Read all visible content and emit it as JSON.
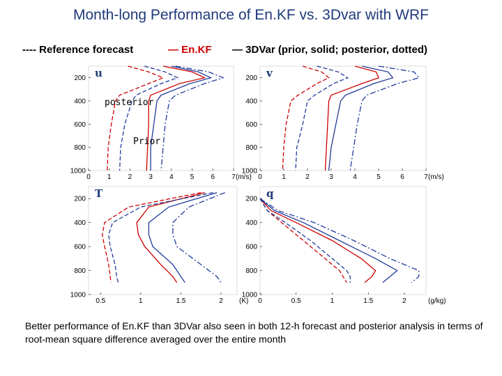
{
  "title": "Month-long Performance of En.KF vs. 3Dvar with WRF",
  "legend": {
    "reference": "---- Reference forecast",
    "enkf": "— En.KF",
    "var3d": "— 3DVar (prior, solid; posterior, dotted)",
    "colors": {
      "reference": "#000000",
      "enkf": "#cc0000",
      "var3d": "#1f3a9a"
    }
  },
  "caption": "Better performance of En.KF than 3DVar also seen in both 12-h forecast and posterior analysis in terms of root-mean square difference averaged over the entire month",
  "annotations": {
    "posterior": "posterior",
    "prior": "Prior"
  },
  "chart_data": [
    {
      "type": "line",
      "label": "u",
      "unit": "(m/s)",
      "xlim": [
        0,
        7
      ],
      "ylim": [
        1000,
        100
      ],
      "xticks": [
        "0",
        "1",
        "2",
        "3",
        "4",
        "5",
        "6",
        "7"
      ],
      "yticks": [
        "200",
        "400",
        "600",
        "800",
        "1000"
      ],
      "series": [
        {
          "name": "En.KF prior",
          "color": "#cc0000",
          "dash": "solid",
          "x": [
            3.6,
            5.0,
            5.6,
            4.4,
            3.0,
            2.9,
            2.9,
            2.85,
            2.8
          ],
          "y": [
            100,
            150,
            200,
            250,
            350,
            400,
            600,
            800,
            1000
          ]
        },
        {
          "name": "En.KF posterior",
          "color": "#cc0000",
          "dash": "dotted",
          "x": [
            1.9,
            2.9,
            3.6,
            2.9,
            1.5,
            1.3,
            1.1,
            0.95,
            0.9
          ],
          "y": [
            100,
            150,
            200,
            250,
            350,
            400,
            600,
            800,
            1000
          ]
        },
        {
          "name": "3DVar prior",
          "color": "#1f3a9a",
          "dash": "solid",
          "x": [
            4.0,
            5.3,
            5.9,
            4.9,
            3.5,
            3.3,
            3.15,
            3.0,
            3.0
          ],
          "y": [
            100,
            150,
            200,
            250,
            350,
            400,
            600,
            800,
            1000
          ]
        },
        {
          "name": "3DVar posterior",
          "color": "#1f3a9a",
          "dash": "dotted",
          "x": [
            2.7,
            3.7,
            4.3,
            3.5,
            2.3,
            2.1,
            1.75,
            1.55,
            1.5
          ],
          "y": [
            100,
            150,
            200,
            250,
            350,
            400,
            600,
            800,
            1000
          ]
        },
        {
          "name": "Reference forecast",
          "color": "#1f3a9a",
          "dash": "dashed",
          "x": [
            4.2,
            5.8,
            6.5,
            5.6,
            4.2,
            3.9,
            3.7,
            3.6,
            3.5
          ],
          "y": [
            100,
            150,
            200,
            250,
            350,
            400,
            600,
            800,
            1000
          ]
        }
      ]
    },
    {
      "type": "line",
      "label": "v",
      "unit": "(m/s)",
      "xlim": [
        0,
        7
      ],
      "ylim": [
        1000,
        100
      ],
      "xticks": [
        "0",
        "1",
        "2",
        "3",
        "4",
        "5",
        "6",
        "7"
      ],
      "yticks": [
        "200",
        "400",
        "600",
        "800",
        "1000"
      ],
      "series": [
        {
          "name": "En.KF prior",
          "color": "#cc0000",
          "dash": "solid",
          "x": [
            4.0,
            4.9,
            5.0,
            4.3,
            3.0,
            2.9,
            2.85,
            2.8,
            2.75
          ],
          "y": [
            100,
            150,
            200,
            250,
            350,
            400,
            600,
            800,
            1000
          ]
        },
        {
          "name": "En.KF posterior",
          "color": "#cc0000",
          "dash": "dotted",
          "x": [
            1.8,
            2.6,
            2.9,
            2.4,
            1.6,
            1.3,
            1.1,
            1.0,
            0.95
          ],
          "y": [
            100,
            150,
            200,
            250,
            350,
            400,
            600,
            800,
            1000
          ]
        },
        {
          "name": "3DVar prior",
          "color": "#1f3a9a",
          "dash": "solid",
          "x": [
            4.3,
            5.4,
            5.6,
            4.8,
            3.6,
            3.4,
            3.2,
            3.0,
            2.9
          ],
          "y": [
            100,
            150,
            200,
            250,
            350,
            400,
            600,
            800,
            1000
          ]
        },
        {
          "name": "3DVar posterior",
          "color": "#1f3a9a",
          "dash": "dotted",
          "x": [
            2.4,
            3.3,
            3.7,
            3.1,
            2.3,
            2.0,
            1.8,
            1.55,
            1.5
          ],
          "y": [
            100,
            150,
            200,
            250,
            350,
            400,
            600,
            800,
            1000
          ]
        },
        {
          "name": "Reference forecast",
          "color": "#1f3a9a",
          "dash": "dashed",
          "x": [
            5.0,
            6.5,
            6.7,
            5.8,
            4.5,
            4.3,
            4.1,
            3.95,
            3.8
          ],
          "y": [
            100,
            150,
            200,
            250,
            350,
            400,
            600,
            800,
            1000
          ]
        }
      ]
    },
    {
      "type": "line",
      "label": "T",
      "unit": "(K)",
      "xlim": [
        0.35,
        2.2
      ],
      "ylim": [
        1000,
        100
      ],
      "xticks": [
        "0.5",
        "1",
        "1.5",
        "2"
      ],
      "xtick_values": [
        0.5,
        1,
        1.5,
        2
      ],
      "yticks": [
        "200",
        "400",
        "600",
        "800",
        "1000"
      ],
      "series": [
        {
          "name": "En.KF prior",
          "color": "#cc0000",
          "dash": "solid",
          "x": [
            1.8,
            1.1,
            0.95,
            0.97,
            1.05,
            1.25,
            1.4,
            1.45
          ],
          "y": [
            150,
            270,
            400,
            500,
            600,
            750,
            850,
            900
          ]
        },
        {
          "name": "En.KF posterior",
          "color": "#cc0000",
          "dash": "dotted",
          "x": [
            1.75,
            0.85,
            0.55,
            0.52,
            0.55,
            0.6,
            0.62,
            0.63
          ],
          "y": [
            150,
            270,
            400,
            500,
            600,
            750,
            850,
            900
          ]
        },
        {
          "name": "3DVar prior",
          "color": "#1f3a9a",
          "dash": "solid",
          "x": [
            1.95,
            1.35,
            1.1,
            1.1,
            1.15,
            1.4,
            1.5,
            1.55
          ],
          "y": [
            150,
            270,
            400,
            500,
            600,
            750,
            850,
            900
          ]
        },
        {
          "name": "3DVar posterior",
          "color": "#1f3a9a",
          "dash": "dotted",
          "x": [
            1.9,
            1.0,
            0.65,
            0.6,
            0.62,
            0.68,
            0.7,
            0.72
          ],
          "y": [
            150,
            270,
            400,
            500,
            600,
            750,
            850,
            900
          ]
        },
        {
          "name": "Reference forecast",
          "color": "#1f3a9a",
          "dash": "dashed",
          "x": [
            2.05,
            1.6,
            1.4,
            1.4,
            1.45,
            1.75,
            1.95,
            2.0
          ],
          "y": [
            150,
            270,
            400,
            500,
            600,
            750,
            850,
            900
          ]
        }
      ]
    },
    {
      "type": "line",
      "label": "q",
      "unit": "(g/kg)",
      "xlim": [
        0,
        2.3
      ],
      "ylim": [
        1000,
        100
      ],
      "xticks": [
        "0",
        "0.5",
        "1",
        "1.5",
        "2"
      ],
      "xtick_values": [
        0,
        0.5,
        1,
        1.5,
        2
      ],
      "yticks": [
        "200",
        "400",
        "600",
        "800",
        "1000"
      ],
      "series": [
        {
          "name": "En.KF prior",
          "color": "#cc0000",
          "dash": "solid",
          "x": [
            0.0,
            0.15,
            0.5,
            1.0,
            1.4,
            1.6,
            1.55,
            1.45
          ],
          "y": [
            200,
            300,
            400,
            550,
            700,
            800,
            850,
            900
          ]
        },
        {
          "name": "En.KF posterior",
          "color": "#cc0000",
          "dash": "dotted",
          "x": [
            0.0,
            0.1,
            0.3,
            0.6,
            0.9,
            1.1,
            1.15,
            1.2
          ],
          "y": [
            200,
            300,
            400,
            550,
            700,
            800,
            850,
            900
          ]
        },
        {
          "name": "3DVar prior",
          "color": "#1f3a9a",
          "dash": "solid",
          "x": [
            0.0,
            0.2,
            0.6,
            1.1,
            1.6,
            1.9,
            1.8,
            1.7
          ],
          "y": [
            200,
            300,
            400,
            550,
            700,
            800,
            850,
            900
          ]
        },
        {
          "name": "3DVar posterior",
          "color": "#1f3a9a",
          "dash": "dotted",
          "x": [
            0.0,
            0.1,
            0.35,
            0.7,
            1.0,
            1.2,
            1.25,
            1.25
          ],
          "y": [
            200,
            300,
            400,
            550,
            700,
            800,
            850,
            900
          ]
        },
        {
          "name": "Reference forecast",
          "color": "#1f3a9a",
          "dash": "dashed",
          "x": [
            0.0,
            0.25,
            0.75,
            1.3,
            1.8,
            2.2,
            2.2,
            2.1
          ],
          "y": [
            200,
            300,
            400,
            550,
            700,
            800,
            850,
            900
          ]
        }
      ]
    }
  ]
}
